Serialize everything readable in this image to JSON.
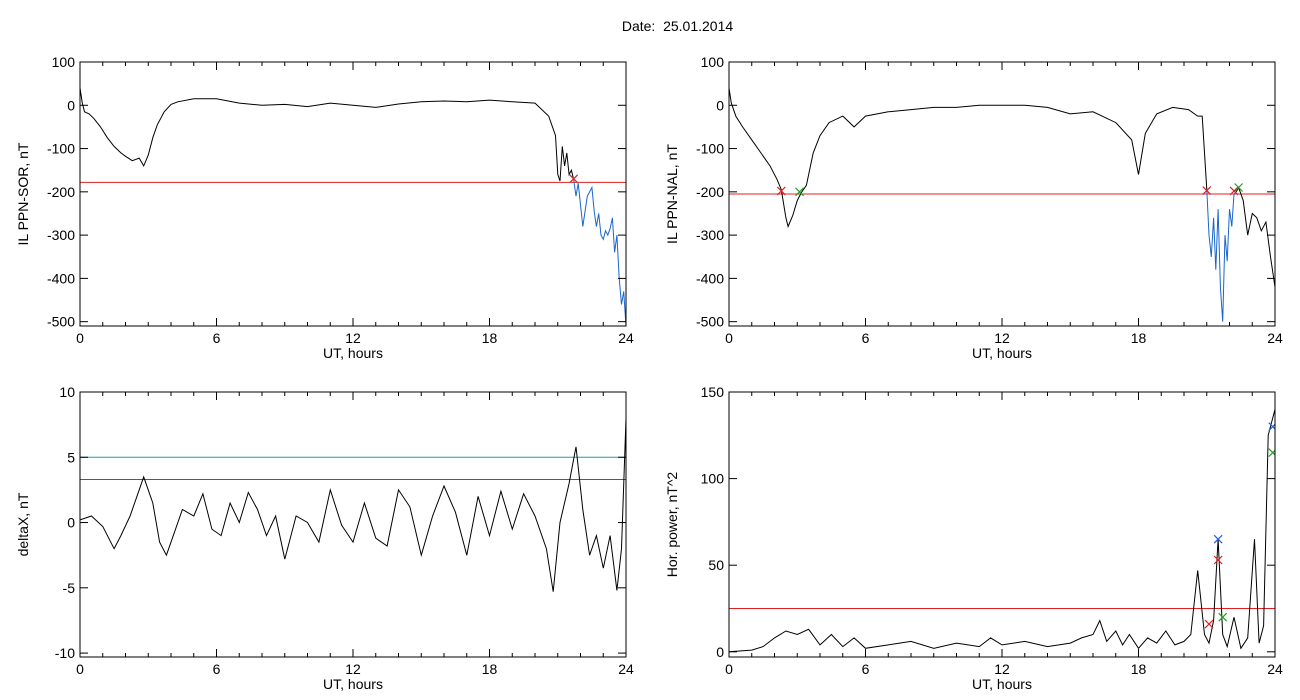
{
  "page": {
    "title": "Date:  25.01.2014"
  },
  "chart_data": [
    {
      "type": "line",
      "xlabel": "UT, hours",
      "ylabel": "IL PPN-SOR, nT",
      "xlim": [
        0,
        24
      ],
      "ylim": [
        -510,
        100
      ],
      "xticks": [
        0,
        6,
        12,
        18,
        24
      ],
      "yticks": [
        100,
        0,
        -100,
        -200,
        -300,
        -400,
        -500
      ],
      "grid": false,
      "series": [
        {
          "color": "#000000",
          "x": [
            0,
            0.1,
            0.2,
            0.4,
            0.6,
            0.9,
            1.2,
            1.5,
            1.8,
            2.0,
            2.3,
            2.6,
            2.8,
            3.0,
            3.2,
            3.4,
            3.7,
            4.0,
            4.3,
            5.0,
            6.0,
            7.0,
            8.0,
            9.0,
            10.0,
            11.0,
            12.0,
            13.0,
            14.0,
            15.0,
            16.0,
            17.0,
            18.0,
            19.0,
            20.0,
            20.6,
            20.9,
            21.0,
            21.1,
            21.2,
            21.3,
            21.4,
            21.5,
            21.6,
            21.7
          ],
          "y": [
            40,
            5,
            -15,
            -20,
            -30,
            -50,
            -75,
            -95,
            -110,
            -118,
            -128,
            -122,
            -140,
            -115,
            -75,
            -45,
            -15,
            2,
            8,
            15,
            15,
            5,
            0,
            2,
            -3,
            5,
            0,
            -5,
            3,
            8,
            10,
            8,
            12,
            8,
            5,
            -25,
            -70,
            -160,
            -175,
            -95,
            -140,
            -110,
            -160,
            -150,
            -172
          ]
        },
        {
          "color": "#1a66cc",
          "x": [
            21.7,
            21.8,
            21.9,
            22.0,
            22.1,
            22.3,
            22.5,
            22.6,
            22.7,
            22.8,
            22.9,
            23.0,
            23.1,
            23.2,
            23.3,
            23.4,
            23.5,
            23.6,
            23.7,
            23.8,
            23.9,
            24.0
          ],
          "y": [
            -172,
            -210,
            -180,
            -230,
            -280,
            -210,
            -190,
            -245,
            -280,
            -250,
            -300,
            -310,
            -290,
            -300,
            -285,
            -260,
            -340,
            -300,
            -400,
            -460,
            -430,
            -510
          ]
        }
      ],
      "hlines": [
        {
          "y": -178,
          "color": "#e02020"
        }
      ],
      "markers": [
        {
          "x": 21.7,
          "y": -170,
          "color": "#e02020",
          "symbol": "x"
        }
      ]
    },
    {
      "type": "line",
      "xlabel": "UT, hours",
      "ylabel": "IL PPN-NAL, nT",
      "xlim": [
        0,
        24
      ],
      "ylim": [
        -510,
        100
      ],
      "xticks": [
        0,
        6,
        12,
        18,
        24
      ],
      "yticks": [
        100,
        0,
        -100,
        -200,
        -300,
        -400,
        -500
      ],
      "grid": false,
      "series": [
        {
          "color": "#000000",
          "x": [
            0,
            0.1,
            0.3,
            0.6,
            1.0,
            1.4,
            1.8,
            2.1,
            2.3,
            2.5,
            2.6,
            2.8,
            3.0,
            3.2,
            3.4,
            3.7,
            4.0,
            4.4,
            5.0,
            5.5,
            6.0,
            7.0,
            8.0,
            9.0,
            10.0,
            11.0,
            12.0,
            13.0,
            14.0,
            15.0,
            16.0,
            17.0,
            17.7,
            18.0,
            18.3,
            18.8,
            19.5,
            20.2,
            20.6,
            20.8,
            21.0
          ],
          "y": [
            40,
            5,
            -25,
            -50,
            -80,
            -110,
            -140,
            -170,
            -195,
            -260,
            -280,
            -255,
            -220,
            -200,
            -185,
            -110,
            -70,
            -40,
            -25,
            -50,
            -25,
            -15,
            -10,
            -5,
            -5,
            0,
            0,
            0,
            -5,
            -20,
            -15,
            -40,
            -80,
            -160,
            -65,
            -20,
            -5,
            -10,
            -25,
            -25,
            -195
          ]
        },
        {
          "color": "#1a66cc",
          "x": [
            21.0,
            21.1,
            21.2,
            21.3,
            21.4,
            21.5,
            21.6,
            21.7,
            21.8,
            21.9,
            22.0,
            22.1,
            22.2,
            22.3
          ],
          "y": [
            -195,
            -300,
            -350,
            -260,
            -380,
            -240,
            -420,
            -500,
            -300,
            -360,
            -240,
            -280,
            -205,
            -200
          ]
        },
        {
          "color": "#000000",
          "x": [
            22.3,
            22.4,
            22.6,
            22.8,
            23.0,
            23.2,
            23.4,
            23.6,
            23.8,
            24.0
          ],
          "y": [
            -200,
            -190,
            -220,
            -300,
            -250,
            -260,
            -290,
            -270,
            -350,
            -420
          ]
        }
      ],
      "hlines": [
        {
          "y": -205,
          "color": "#e02020"
        }
      ],
      "markers": [
        {
          "x": 2.3,
          "y": -198,
          "color": "#e02020",
          "symbol": "x"
        },
        {
          "x": 3.1,
          "y": -200,
          "color": "#20a020",
          "symbol": "x"
        },
        {
          "x": 21.0,
          "y": -197,
          "color": "#e02020",
          "symbol": "x"
        },
        {
          "x": 22.2,
          "y": -198,
          "color": "#e02020",
          "symbol": "x"
        },
        {
          "x": 22.4,
          "y": -190,
          "color": "#20a020",
          "symbol": "x"
        }
      ]
    },
    {
      "type": "line",
      "xlabel": "UT, hours",
      "ylabel": "deltaX, nT",
      "xlim": [
        0,
        24
      ],
      "ylim": [
        -10.3,
        10
      ],
      "xticks": [
        0,
        6,
        12,
        18,
        24
      ],
      "yticks": [
        10,
        5,
        0,
        -5,
        -10
      ],
      "yticklabels": [
        "10",
        "5",
        "0",
        "-5",
        "-10"
      ],
      "grid": false,
      "series": [
        {
          "color": "#000000",
          "x": [
            0,
            0.5,
            1.0,
            1.5,
            1.8,
            2.2,
            2.8,
            3.2,
            3.5,
            3.8,
            4.1,
            4.5,
            5.0,
            5.4,
            5.8,
            6.2,
            6.6,
            7.0,
            7.4,
            7.8,
            8.2,
            8.6,
            9.0,
            9.5,
            10.0,
            10.5,
            11.0,
            11.5,
            12.0,
            12.5,
            13.0,
            13.5,
            14.0,
            14.5,
            15.0,
            15.5,
            16.0,
            16.5,
            17.0,
            17.5,
            18.0,
            18.5,
            19.0,
            19.5,
            20.0,
            20.5,
            20.8,
            21.1,
            21.5,
            21.8,
            22.1,
            22.4,
            22.7,
            23.0,
            23.3,
            23.6,
            23.8,
            24.0
          ],
          "y": [
            0.2,
            0.5,
            -0.3,
            -2.0,
            -1.0,
            0.5,
            3.5,
            1.5,
            -1.5,
            -2.5,
            -1.0,
            1.0,
            0.5,
            2.2,
            -0.5,
            -1.0,
            1.5,
            0.0,
            2.3,
            1.0,
            -1.0,
            0.5,
            -2.8,
            0.5,
            0.0,
            -1.5,
            2.5,
            -0.2,
            -1.5,
            1.5,
            -1.2,
            -1.8,
            2.5,
            1.2,
            -2.5,
            0.5,
            2.8,
            0.8,
            -2.5,
            2.0,
            -1.0,
            2.4,
            -0.5,
            2.2,
            0.5,
            -2.0,
            -5.3,
            0.0,
            3.0,
            5.8,
            1.0,
            -2.5,
            -1.0,
            -3.5,
            -1.0,
            -5.2,
            -2.0,
            8.0
          ]
        }
      ],
      "hlines": [
        {
          "y": 5.0,
          "color": "#20a0a0"
        },
        {
          "y": 3.3,
          "color": "#e02020"
        }
      ],
      "markers": []
    },
    {
      "type": "line",
      "xlabel": "UT, hours",
      "ylabel": "Hor. power, nT^2",
      "xlim": [
        0,
        24
      ],
      "ylim": [
        -3,
        150
      ],
      "xticks": [
        0,
        6,
        12,
        18,
        24
      ],
      "yticks": [
        150,
        100,
        50,
        0
      ],
      "grid": false,
      "series": [
        {
          "color": "#000000",
          "x": [
            0,
            1.0,
            1.5,
            2.0,
            2.5,
            3.0,
            3.5,
            4.0,
            4.5,
            5.0,
            5.5,
            6.0,
            7.0,
            8.0,
            9.0,
            10.0,
            11.0,
            11.5,
            12.0,
            13.0,
            14.0,
            15.0,
            15.5,
            16.0,
            16.3,
            16.6,
            17.0,
            17.3,
            17.6,
            18.0,
            18.4,
            18.8,
            19.2,
            19.6,
            20.0,
            20.3,
            20.6,
            20.9,
            21.1,
            21.3,
            21.5,
            21.7,
            21.9,
            22.2,
            22.5,
            22.8,
            23.1,
            23.3,
            23.5,
            23.7,
            24.0
          ],
          "y": [
            0,
            1,
            3,
            8,
            12,
            10,
            13,
            4,
            10,
            3,
            8,
            2,
            4,
            6,
            2,
            5,
            3,
            8,
            4,
            6,
            3,
            5,
            8,
            10,
            18,
            6,
            12,
            4,
            10,
            2,
            8,
            5,
            12,
            4,
            6,
            10,
            47,
            10,
            5,
            18,
            65,
            10,
            3,
            20,
            2,
            8,
            65,
            5,
            15,
            125,
            140
          ]
        }
      ],
      "hlines": [
        {
          "y": 25,
          "color": "#e02020"
        }
      ],
      "markers": [
        {
          "x": 21.1,
          "y": 16,
          "color": "#e02020",
          "symbol": "x"
        },
        {
          "x": 21.5,
          "y": 53,
          "color": "#e02020",
          "symbol": "x"
        },
        {
          "x": 21.5,
          "y": 65,
          "color": "#2060e0",
          "symbol": "x"
        },
        {
          "x": 21.7,
          "y": 20,
          "color": "#20a020",
          "symbol": "x"
        },
        {
          "x": 23.9,
          "y": 115,
          "color": "#20a020",
          "symbol": "x"
        },
        {
          "x": 23.9,
          "y": 130,
          "color": "#2060e0",
          "symbol": "x"
        }
      ]
    }
  ]
}
